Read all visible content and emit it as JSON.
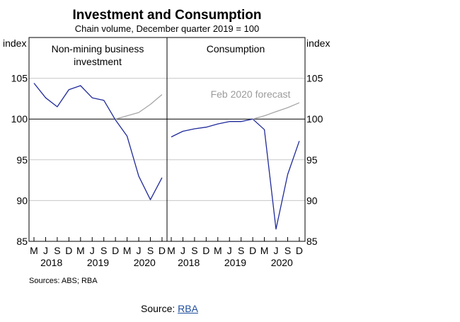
{
  "chart": {
    "title": "Investment and Consumption",
    "subtitle": "Chain volume, December quarter 2019 = 100",
    "source": "Sources: ABS; RBA"
  },
  "footer": {
    "prefix": "Source:",
    "link_text": "RBA"
  },
  "colors": {
    "actual": "#1f2a9a",
    "forecast": "#a6a6a6",
    "grid": "#c8c8c8"
  },
  "chart_data": [
    {
      "type": "line",
      "title": "Non-mining business investment",
      "ylabel_left": "index",
      "ylim": [
        85,
        110
      ],
      "yticks": [
        85,
        90,
        95,
        100,
        105
      ],
      "x_tick_labels": [
        "M",
        "J",
        "S",
        "D",
        "M",
        "J",
        "S",
        "D",
        "M",
        "J",
        "S",
        "D"
      ],
      "year_labels": [
        "2018",
        "2019",
        "2020"
      ],
      "grid": true,
      "series": [
        {
          "role": "actual",
          "start_index": 0,
          "values": [
            104.4,
            102.6,
            101.5,
            103.6,
            104.1,
            102.6,
            102.3,
            99.9,
            97.9,
            93.0,
            90.1,
            92.8
          ]
        },
        {
          "role": "forecast",
          "start_index": 7,
          "values": [
            100.0,
            100.4,
            100.8,
            101.8,
            103.0
          ]
        }
      ]
    },
    {
      "type": "line",
      "title": "Consumption",
      "ylabel_right": "index",
      "ylim": [
        85,
        110
      ],
      "yticks": [
        85,
        90,
        95,
        100,
        105
      ],
      "x_tick_labels": [
        "M",
        "J",
        "S",
        "D",
        "M",
        "J",
        "S",
        "D",
        "M",
        "J",
        "S",
        "D"
      ],
      "year_labels": [
        "2018",
        "2019",
        "2020"
      ],
      "grid": true,
      "annotation": "Feb 2020 forecast",
      "series": [
        {
          "role": "actual",
          "start_index": 0,
          "values": [
            97.8,
            98.5,
            98.8,
            99.0,
            99.4,
            99.7,
            99.7,
            100.0,
            98.7,
            86.5,
            93.2,
            97.3
          ]
        },
        {
          "role": "forecast",
          "start_index": 7,
          "values": [
            100.0,
            100.4,
            100.9,
            101.4,
            102.0
          ]
        }
      ]
    }
  ]
}
